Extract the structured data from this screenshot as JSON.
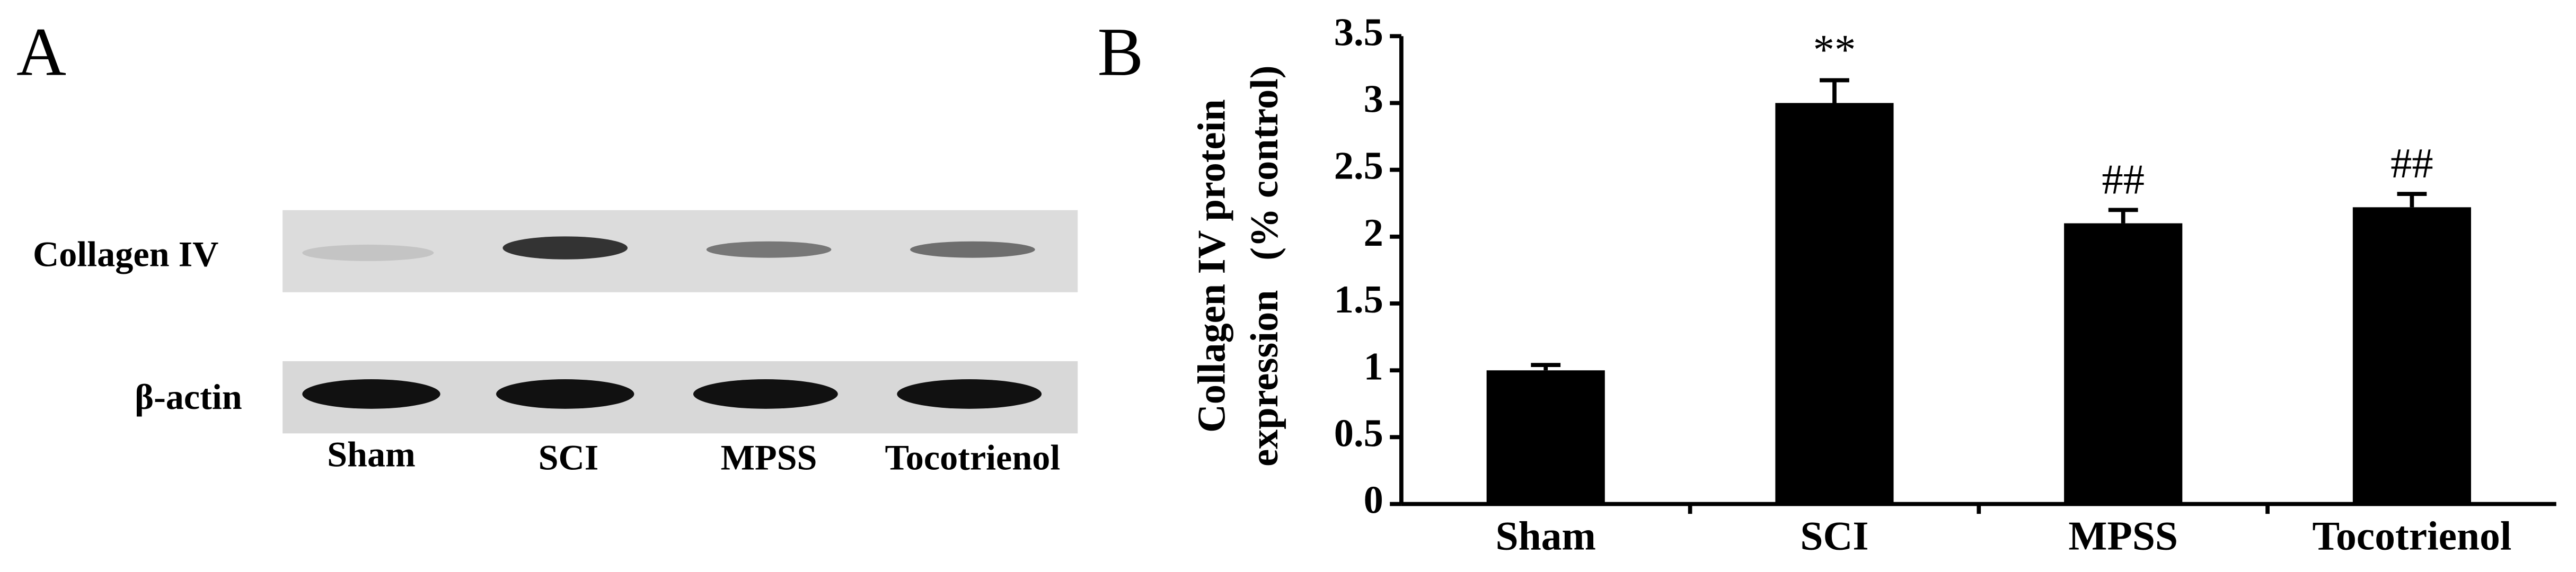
{
  "panel_labels": [
    "A",
    "B"
  ],
  "blot": {
    "row_labels": [
      "Collagen IV",
      "β-actin"
    ],
    "lane_labels": [
      "Sham",
      "SCI",
      "MPSS",
      "Tocotrienol"
    ]
  },
  "chart_data": {
    "type": "bar",
    "ylabel": [
      "Collagen IV protein",
      "expression   (% control)"
    ],
    "categories": [
      "Sham",
      "SCI",
      "MPSS",
      "Tocotrienol"
    ],
    "values": [
      1.0,
      3.0,
      2.1,
      2.22
    ],
    "errors": [
      0.04,
      0.17,
      0.1,
      0.1
    ],
    "annotations": [
      null,
      "**",
      "##",
      "##"
    ],
    "color": "#000000",
    "ylim": [
      0,
      3.5
    ],
    "yticks": [
      0,
      0.5,
      1,
      1.5,
      2,
      2.5,
      3,
      3.5
    ]
  }
}
